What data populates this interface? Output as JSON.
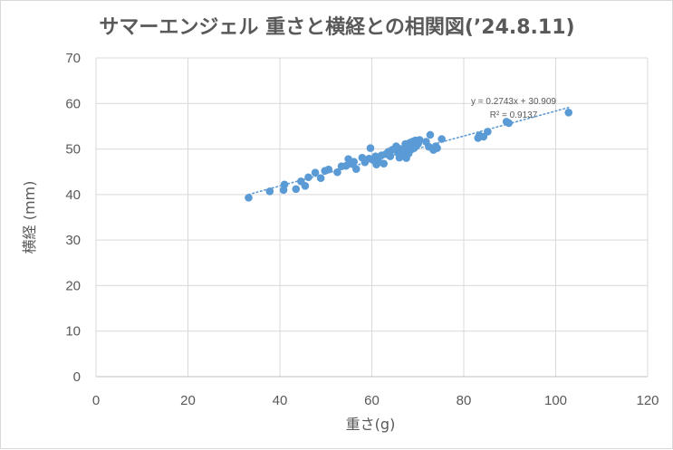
{
  "chart_data": {
    "type": "scatter",
    "title": "サマーエンジェル 重さと横経との相関図(’24.8.11)",
    "xlabel": "重さ(g)",
    "ylabel": "横経 (mm)",
    "xlim": [
      0,
      120
    ],
    "ylim": [
      0,
      70
    ],
    "xticks": [
      0,
      20,
      40,
      60,
      80,
      100,
      120
    ],
    "yticks": [
      0,
      10,
      20,
      30,
      40,
      50,
      60,
      70
    ],
    "grid": true,
    "legend": "none",
    "marker_color": "#5b9bd5",
    "trendline": {
      "type": "linear",
      "slope": 0.2743,
      "intercept": 30.909,
      "equation": "y = 0.2743x + 30.909",
      "r2": "R² = 0.9137",
      "color": "#5b9bd5",
      "style": "dotted"
    },
    "points": [
      [
        33.2,
        39.3
      ],
      [
        37.8,
        40.7
      ],
      [
        40.8,
        41.0
      ],
      [
        41.0,
        42.2
      ],
      [
        43.5,
        41.2
      ],
      [
        44.6,
        42.9
      ],
      [
        45.5,
        41.9
      ],
      [
        46.2,
        43.8
      ],
      [
        47.7,
        44.8
      ],
      [
        48.9,
        43.6
      ],
      [
        49.8,
        45.2
      ],
      [
        50.6,
        45.5
      ],
      [
        52.5,
        44.9
      ],
      [
        53.4,
        46.2
      ],
      [
        54.4,
        46.3
      ],
      [
        54.9,
        47.8
      ],
      [
        55.7,
        46.7
      ],
      [
        56.1,
        47.2
      ],
      [
        56.6,
        45.6
      ],
      [
        57.9,
        48.1
      ],
      [
        58.5,
        47.1
      ],
      [
        59.4,
        47.9
      ],
      [
        59.7,
        50.2
      ],
      [
        60.2,
        47.6
      ],
      [
        60.8,
        48.4
      ],
      [
        61.0,
        46.6
      ],
      [
        61.5,
        47.2
      ],
      [
        62.1,
        48.6
      ],
      [
        62.6,
        46.8
      ],
      [
        63.1,
        48.9
      ],
      [
        63.6,
        49.4
      ],
      [
        64.0,
        48.4
      ],
      [
        64.4,
        49.8
      ],
      [
        65.0,
        50.1
      ],
      [
        65.3,
        50.6
      ],
      [
        65.7,
        49.2
      ],
      [
        66.0,
        48.1
      ],
      [
        66.2,
        50.0
      ],
      [
        66.5,
        49.4
      ],
      [
        66.8,
        48.7
      ],
      [
        67.0,
        49.7
      ],
      [
        67.3,
        51.1
      ],
      [
        67.5,
        48.0
      ],
      [
        67.8,
        50.3
      ],
      [
        68.0,
        49.0
      ],
      [
        68.3,
        51.4
      ],
      [
        68.6,
        49.9
      ],
      [
        69.0,
        51.7
      ],
      [
        69.2,
        50.2
      ],
      [
        69.5,
        51.9
      ],
      [
        69.7,
        50.7
      ],
      [
        70.1,
        51.2
      ],
      [
        70.4,
        52.0
      ],
      [
        71.8,
        51.6
      ],
      [
        72.4,
        50.5
      ],
      [
        72.7,
        53.1
      ],
      [
        73.4,
        49.8
      ],
      [
        73.9,
        50.6
      ],
      [
        74.2,
        50.2
      ],
      [
        75.2,
        52.2
      ],
      [
        83.1,
        52.4
      ],
      [
        83.4,
        53.0
      ],
      [
        84.3,
        52.7
      ],
      [
        85.2,
        53.8
      ],
      [
        89.3,
        56.0
      ],
      [
        89.8,
        55.7
      ],
      [
        102.8,
        58.0
      ]
    ]
  }
}
